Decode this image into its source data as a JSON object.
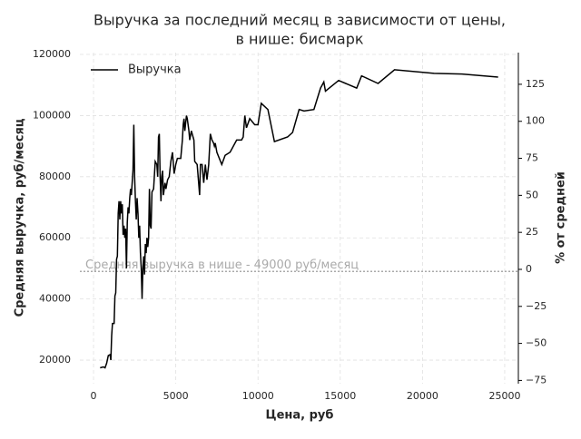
{
  "chart_data": {
    "type": "line",
    "title": "Выручка за последний месяц в зависимости от цены,",
    "subtitle": "в нише: бисмарк",
    "xlabel": "Цена, руб",
    "ylabel": "Средняя выручка, руб/месяц",
    "y2label": "% от средней",
    "legend": "upper left",
    "grid": true,
    "xlim": [
      -830,
      25830
    ],
    "xticks": [
      0,
      5000,
      10000,
      15000,
      20000,
      25000
    ],
    "ylim": [
      12300,
      120600
    ],
    "yticks": [
      20000,
      40000,
      60000,
      80000,
      100000,
      120000
    ],
    "y2lim": [
      -77.2,
      146.4
    ],
    "y2ticks": [
      {
        "value": -75,
        "label": "−75"
      },
      {
        "value": -50,
        "label": "−50"
      },
      {
        "value": -25,
        "label": "−25"
      },
      0,
      25,
      50,
      75,
      100,
      125
    ],
    "reference_line": {
      "label": "Средняя выручка в нише - 49000 руб/месяц",
      "value": 49000,
      "color": "#aaaaaa"
    },
    "x": [
      400,
      600,
      700,
      800,
      900,
      1000,
      1050,
      1100,
      1150,
      1250,
      1300,
      1350,
      1400,
      1450,
      1500,
      1550,
      1600,
      1650,
      1700,
      1750,
      1800,
      1850,
      1900,
      1950,
      2000,
      2050,
      2100,
      2150,
      2200,
      2250,
      2300,
      2400,
      2450,
      2500,
      2550,
      2600,
      2650,
      2700,
      2750,
      2800,
      2850,
      2900,
      2950,
      3000,
      3050,
      3100,
      3150,
      3200,
      3250,
      3300,
      3350,
      3400,
      3450,
      3500,
      3550,
      3650,
      3750,
      3850,
      3900,
      3950,
      4000,
      4050,
      4100,
      4150,
      4200,
      4250,
      4300,
      4350,
      4400,
      4500,
      4600,
      4700,
      4800,
      4900,
      5000,
      5100,
      5300,
      5400,
      5450,
      5500,
      5550,
      5650,
      5700,
      5800,
      5850,
      5950,
      6100,
      6150,
      6300,
      6450,
      6500,
      6600,
      6700,
      6800,
      6900,
      7000,
      7100,
      7200,
      7300,
      7350,
      7400,
      7500,
      7800,
      8000,
      8300,
      8700,
      9000,
      9100,
      9200,
      9300,
      9500,
      9800,
      10000,
      10200,
      10600,
      11000,
      11800,
      12100,
      12500,
      12800,
      13400,
      13800,
      14000,
      14100,
      14900,
      16000,
      16300,
      17300,
      18300,
      20700,
      22400,
      24600
    ],
    "series": [
      {
        "name": "Выручка",
        "color": "#000000",
        "values": [
          17500,
          17800,
          17500,
          19000,
          21500,
          21800,
          20000,
          28000,
          32000,
          32000,
          41000,
          42000,
          53000,
          54000,
          68000,
          72000,
          66000,
          72000,
          68000,
          71000,
          61000,
          64000,
          60000,
          63000,
          50000,
          65000,
          70000,
          68000,
          73000,
          76000,
          74000,
          82000,
          97000,
          80000,
          72000,
          66000,
          73000,
          68000,
          60000,
          64000,
          55000,
          50000,
          40000,
          50000,
          54000,
          48000,
          58000,
          55000,
          60000,
          57000,
          60000,
          76000,
          64000,
          63000,
          75000,
          76000,
          85000,
          84000,
          80000,
          93000,
          94000,
          80000,
          72000,
          80000,
          82000,
          74000,
          76000,
          78000,
          76000,
          79000,
          80000,
          85000,
          88000,
          81000,
          84000,
          86000,
          86000,
          92000,
          97000,
          99000,
          95000,
          100000,
          99000,
          95000,
          92000,
          95000,
          92000,
          85000,
          84000,
          74000,
          84000,
          84000,
          78000,
          84000,
          79000,
          84000,
          94000,
          92000,
          91000,
          90000,
          91000,
          88000,
          84000,
          87000,
          88000,
          92000,
          92000,
          93000,
          100000,
          96000,
          99000,
          97000,
          97000,
          104000,
          102000,
          91500,
          93000,
          94500,
          102000,
          101500,
          102000,
          109000,
          111000,
          108000,
          111500,
          109000,
          113000,
          110500,
          115000,
          113800,
          113600,
          112600
        ]
      }
    ]
  }
}
